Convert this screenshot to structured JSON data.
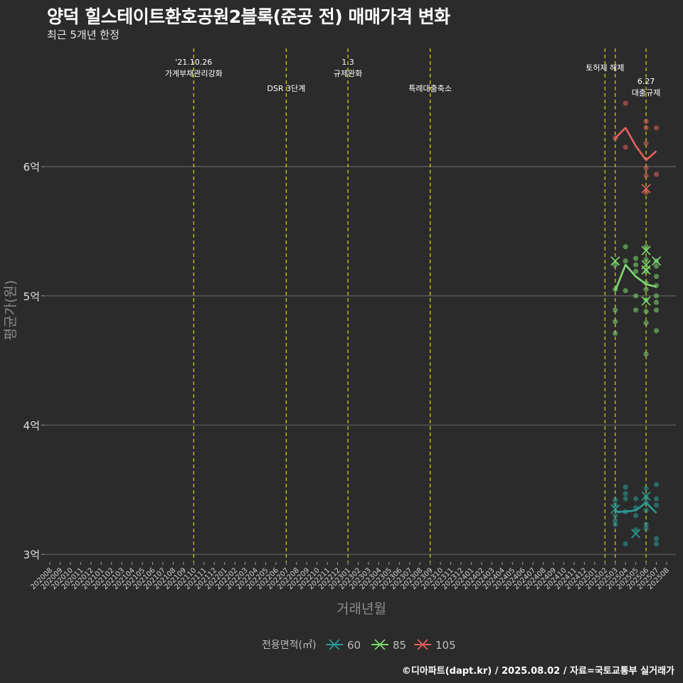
{
  "header": {
    "title": "양덕 힐스테이트환호공원2블록(준공 전) 매매가격 변화",
    "subtitle": "최근 5개년 한정",
    "caption": "©디아파트(dapt.kr) / 2025.08.02 / 자료=국토교통부 실거래가"
  },
  "chart_data": {
    "type": "scatter",
    "xlabel": "거래년월",
    "ylabel": "평균가(원)",
    "ylim": [
      2.94,
      6.97
    ],
    "y_ticks": [
      {
        "value": 3,
        "label": "3억"
      },
      {
        "value": 4,
        "label": "4억"
      },
      {
        "value": 5,
        "label": "5억"
      },
      {
        "value": 6,
        "label": "6억"
      }
    ],
    "categories": [
      "202008",
      "202009",
      "202010",
      "202011",
      "202012",
      "202101",
      "202102",
      "202103",
      "202104",
      "202105",
      "202106",
      "202107",
      "202108",
      "202109",
      "202110",
      "202111",
      "202112",
      "202201",
      "202202",
      "202203",
      "202204",
      "202205",
      "202206",
      "202207",
      "202208",
      "202209",
      "202210",
      "202211",
      "202212",
      "202301",
      "202302",
      "202303",
      "202304",
      "202305",
      "202306",
      "202307",
      "202308",
      "202309",
      "202310",
      "202311",
      "202312",
      "202401",
      "202402",
      "202403",
      "202404",
      "202405",
      "202406",
      "202407",
      "202408",
      "202409",
      "202410",
      "202411",
      "202412",
      "202501",
      "202502",
      "202503",
      "202504",
      "202505",
      "202506",
      "202507",
      "202508"
    ],
    "grid": true,
    "legend": {
      "title": "전용면적(㎡)",
      "position": "bottom",
      "entries": [
        {
          "label": "60",
          "color": "#2a9d96"
        },
        {
          "label": "85",
          "color": "#7ddc6f"
        },
        {
          "label": "105",
          "color": "#e8605c"
        }
      ]
    },
    "events": [
      {
        "x": "202110",
        "labels": [
          "'21.10.26",
          "가계부채관리강화"
        ],
        "row": 0
      },
      {
        "x": "202207",
        "labels": [
          "DSR 3단계"
        ],
        "row": 2
      },
      {
        "x": "202301",
        "labels": [
          "1.3",
          "규제완화"
        ],
        "row": 0
      },
      {
        "x": "202309",
        "labels": [
          "특례대출축소"
        ],
        "row": 2
      },
      {
        "x": "202502",
        "labels": [
          "토허제 해제"
        ],
        "row": 1
      },
      {
        "x": "202503",
        "labels": [],
        "row": 1
      },
      {
        "x": "202506",
        "labels": [
          "6.27",
          "대출규제"
        ],
        "row": 3
      }
    ],
    "series": [
      {
        "name": "60",
        "color": "#2a9d96",
        "mean": [
          [
            "202503",
            3.33
          ],
          [
            "202504",
            3.33
          ],
          [
            "202505",
            3.34
          ],
          [
            "202506",
            3.4
          ],
          [
            "202507",
            3.32
          ]
        ],
        "points": [
          [
            "202503",
            3.42
          ],
          [
            "202503",
            3.38
          ],
          [
            "202503",
            3.3
          ],
          [
            "202503",
            3.26
          ],
          [
            "202503",
            3.23
          ],
          [
            "202504",
            3.52
          ],
          [
            "202504",
            3.47
          ],
          [
            "202504",
            3.43
          ],
          [
            "202504",
            3.33
          ],
          [
            "202504",
            3.08
          ],
          [
            "202505",
            3.43
          ],
          [
            "202505",
            3.36
          ],
          [
            "202505",
            3.3
          ],
          [
            "202505",
            3.19
          ],
          [
            "202506",
            3.51
          ],
          [
            "202506",
            3.44
          ],
          [
            "202506",
            3.4
          ],
          [
            "202506",
            3.34
          ],
          [
            "202506",
            3.23
          ],
          [
            "202506",
            3.2
          ],
          [
            "202507",
            3.54
          ],
          [
            "202507",
            3.43
          ],
          [
            "202507",
            3.38
          ],
          [
            "202507",
            3.12
          ],
          [
            "202507",
            3.08
          ]
        ],
        "cancelled": [
          [
            "202503",
            3.35
          ],
          [
            "202505",
            3.16
          ],
          [
            "202506",
            3.45
          ]
        ]
      },
      {
        "name": "85",
        "color": "#7ddc6f",
        "mean": [
          [
            "202503",
            5.04
          ],
          [
            "202504",
            5.24
          ],
          [
            "202505",
            5.15
          ],
          [
            "202506",
            5.09
          ],
          [
            "202507",
            5.07
          ]
        ],
        "points": [
          [
            "202503",
            5.24
          ],
          [
            "202503",
            5.05
          ],
          [
            "202503",
            4.89
          ],
          [
            "202503",
            4.8
          ],
          [
            "202503",
            4.71
          ],
          [
            "202504",
            5.38
          ],
          [
            "202504",
            5.27
          ],
          [
            "202504",
            5.04
          ],
          [
            "202505",
            5.29
          ],
          [
            "202505",
            5.24
          ],
          [
            "202505",
            5.19
          ],
          [
            "202505",
            5.0
          ],
          [
            "202505",
            4.89
          ],
          [
            "202506",
            5.38
          ],
          [
            "202506",
            5.28
          ],
          [
            "202506",
            5.19
          ],
          [
            "202506",
            5.1
          ],
          [
            "202506",
            5.05
          ],
          [
            "202506",
            4.97
          ],
          [
            "202506",
            4.88
          ],
          [
            "202506",
            4.79
          ],
          [
            "202506",
            4.55
          ],
          [
            "202507",
            5.27
          ],
          [
            "202507",
            5.23
          ],
          [
            "202507",
            5.15
          ],
          [
            "202507",
            5.08
          ],
          [
            "202507",
            5.0
          ],
          [
            "202507",
            4.95
          ],
          [
            "202507",
            4.89
          ],
          [
            "202507",
            4.73
          ]
        ],
        "cancelled": [
          [
            "202503",
            5.27
          ],
          [
            "202506",
            5.35
          ],
          [
            "202506",
            5.24
          ],
          [
            "202506",
            5.2
          ],
          [
            "202506",
            4.96
          ],
          [
            "202507",
            5.27
          ]
        ]
      },
      {
        "name": "105",
        "color": "#e8605c",
        "mean": [
          [
            "202503",
            6.22
          ],
          [
            "202504",
            6.3
          ],
          [
            "202505",
            6.16
          ],
          [
            "202506",
            6.05
          ],
          [
            "202507",
            6.12
          ]
        ],
        "points": [
          [
            "202503",
            6.22
          ],
          [
            "202504",
            6.49
          ],
          [
            "202504",
            6.15
          ],
          [
            "202506",
            6.35
          ],
          [
            "202506",
            6.3
          ],
          [
            "202506",
            6.18
          ],
          [
            "202506",
            5.99
          ],
          [
            "202506",
            5.93
          ],
          [
            "202506",
            5.8
          ],
          [
            "202507",
            6.3
          ],
          [
            "202507",
            5.94
          ]
        ],
        "cancelled": [
          [
            "202506",
            5.83
          ]
        ]
      }
    ]
  }
}
